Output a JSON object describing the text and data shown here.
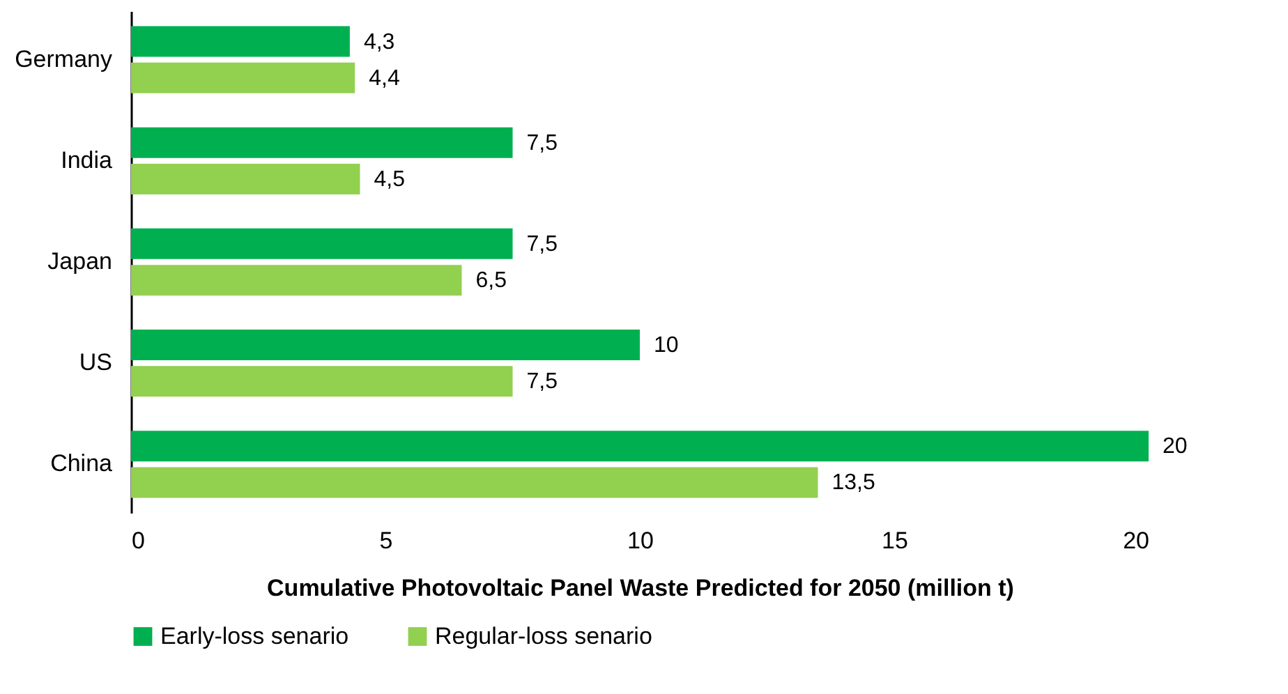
{
  "chart_data": {
    "type": "bar",
    "orientation": "horizontal",
    "xlabel": "Cumulative Photovoltaic Panel Waste Predicted for 2050 (million t)",
    "categories": [
      "Germany",
      "India",
      "Japan",
      "US",
      "China"
    ],
    "series": [
      {
        "name": "Early-loss senario",
        "color": "#00b050",
        "values": [
          4.3,
          7.5,
          7.5,
          10,
          20
        ],
        "value_labels": [
          "4,3",
          "7,5",
          "7,5",
          "10",
          "20"
        ]
      },
      {
        "name": "Regular-loss senario",
        "color": "#92d050",
        "values": [
          4.4,
          4.5,
          6.5,
          7.5,
          13.5
        ],
        "value_labels": [
          "4,4",
          "4,5",
          "6,5",
          "7,5",
          "13,5"
        ]
      }
    ],
    "xlim": [
      0,
      20
    ],
    "xticks": [
      0,
      5,
      10,
      15,
      20
    ],
    "grid": false,
    "legend": "bottom"
  }
}
